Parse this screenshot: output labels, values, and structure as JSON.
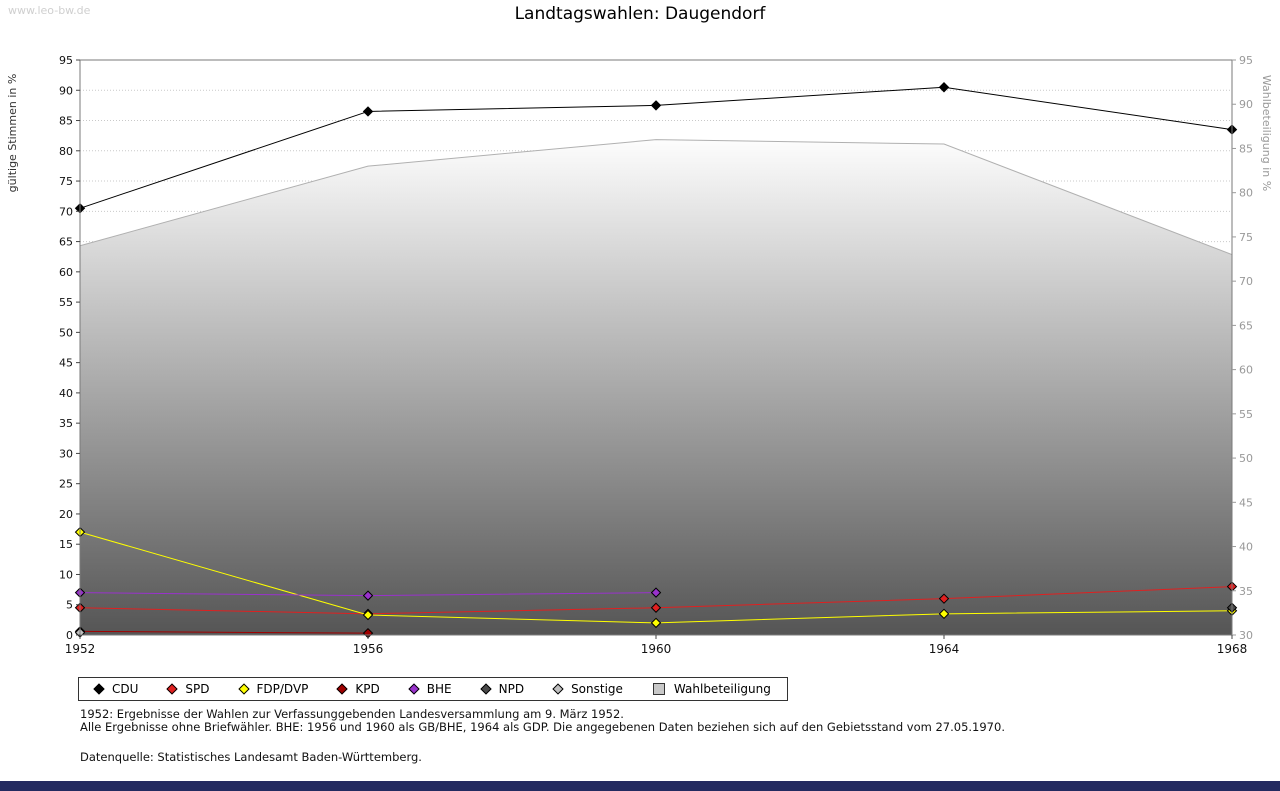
{
  "watermark": "www.leo-bw.de",
  "title": "Landtagswahlen: Daugendorf",
  "footnotes": {
    "line1": "1952: Ergebnisse der Wahlen zur Verfassunggebenden Landesversammlung am 9. März 1952.",
    "line2": "Alle Ergebnisse ohne Briefwähler. BHE: 1956 und 1960 als GB/BHE, 1964 als GDP. Die angegebenen Daten beziehen sich auf den Gebietsstand vom 27.05.1970.",
    "source": "Datenquelle: Statistisches Landesamt Baden-Württemberg."
  },
  "chart_data": {
    "type": "line",
    "title": "Landtagswahlen: Daugendorf",
    "x": [
      1952,
      1956,
      1960,
      1964,
      1968
    ],
    "left_axis": {
      "label": "gültige Stimmen in %",
      "min": 0,
      "max": 95,
      "step": 5
    },
    "right_axis": {
      "label": "Wahlbeteiligung in %",
      "min": 30,
      "max": 95,
      "step": 5
    },
    "grid": true,
    "legend_position": "bottom",
    "series": [
      {
        "name": "CDU",
        "color": "#000000",
        "marker": "diamond",
        "axis": "left",
        "values": [
          70.5,
          86.5,
          87.5,
          90.5,
          83.5
        ]
      },
      {
        "name": "SPD",
        "color": "#e02020",
        "marker": "diamond",
        "axis": "left",
        "values": [
          4.5,
          3.5,
          4.5,
          6,
          8
        ]
      },
      {
        "name": "FDP/DVP",
        "color": "#ffff00",
        "marker": "diamond",
        "axis": "left",
        "values": [
          17,
          3.3,
          2,
          3.5,
          4
        ]
      },
      {
        "name": "KPD",
        "color": "#a00000",
        "marker": "diamond",
        "axis": "left",
        "values": [
          0.6,
          0.3,
          null,
          null,
          null
        ]
      },
      {
        "name": "BHE",
        "color": "#9932cc",
        "marker": "diamond",
        "axis": "left",
        "values": [
          7,
          6.5,
          7,
          null,
          null
        ]
      },
      {
        "name": "NPD",
        "color": "#4a4a4a",
        "marker": "diamond",
        "axis": "left",
        "values": [
          null,
          null,
          null,
          null,
          4.5
        ]
      },
      {
        "name": "Sonstige",
        "color": "#c0c0c0",
        "marker": "diamond",
        "axis": "left",
        "values": [
          0.4,
          null,
          null,
          null,
          null
        ]
      }
    ],
    "participation": {
      "name": "Wahlbeteiligung",
      "axis": "right",
      "values": [
        74,
        83,
        86,
        85.5,
        73
      ],
      "line_color": "#b0b0b0",
      "fill_top": "#fdfdfd",
      "fill_bottom": "#555555"
    }
  },
  "legend": [
    {
      "label": "CDU",
      "color": "#000000",
      "shape": "diamond"
    },
    {
      "label": "SPD",
      "color": "#e02020",
      "shape": "diamond"
    },
    {
      "label": "FDP/DVP",
      "color": "#ffff00",
      "shape": "diamond"
    },
    {
      "label": "KPD",
      "color": "#a00000",
      "shape": "diamond"
    },
    {
      "label": "BHE",
      "color": "#9932cc",
      "shape": "diamond"
    },
    {
      "label": "NPD",
      "color": "#4a4a4a",
      "shape": "diamond"
    },
    {
      "label": "Sonstige",
      "color": "#c0c0c0",
      "shape": "diamond"
    },
    {
      "label": "Wahlbeteiligung",
      "color": "#c8c8c8",
      "shape": "square"
    }
  ]
}
